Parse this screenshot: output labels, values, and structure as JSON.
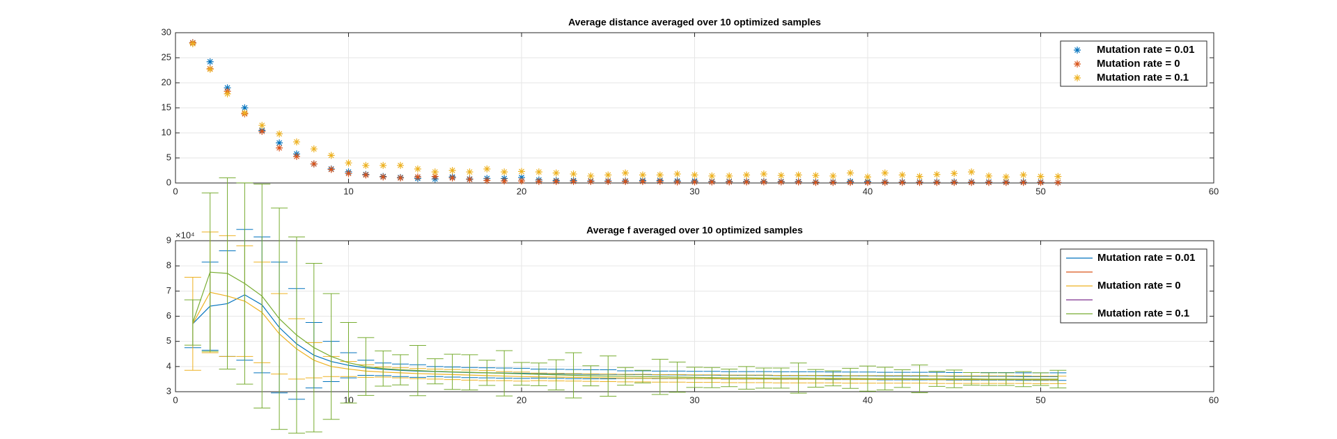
{
  "chart_data": [
    {
      "type": "scatter",
      "title": "Average distance averaged over 10 optimized samples",
      "x": [
        1,
        2,
        3,
        4,
        5,
        6,
        7,
        8,
        9,
        10,
        11,
        12,
        13,
        14,
        15,
        16,
        17,
        18,
        19,
        20,
        21,
        22,
        23,
        24,
        25,
        26,
        27,
        28,
        29,
        30,
        31,
        32,
        33,
        34,
        35,
        36,
        37,
        38,
        39,
        40,
        41,
        42,
        43,
        44,
        45,
        46,
        47,
        48,
        49,
        50,
        51
      ],
      "xlim": [
        0,
        60
      ],
      "xticks": [
        0,
        10,
        20,
        30,
        40,
        50,
        60
      ],
      "ylim": [
        0,
        30
      ],
      "yticks": [
        0,
        5,
        10,
        15,
        20,
        25,
        30
      ],
      "grid": true,
      "legend": "northeast",
      "series": [
        {
          "name": "Mutation rate = 0.01",
          "color": "#0072BD",
          "values": [
            28,
            24.2,
            19,
            15,
            10.5,
            8,
            5.8,
            3.8,
            2.8,
            2.2,
            1.7,
            1.3,
            1.1,
            0.9,
            0.8,
            1.2,
            0.8,
            0.9,
            0.9,
            1.1,
            0.6,
            0.5,
            0.5,
            0.4,
            0.4,
            0.4,
            0.5,
            0.5,
            0.4,
            0.4,
            0.3,
            0.3,
            0.3,
            0.3,
            0.3,
            0.3,
            0.2,
            0.2,
            0.3,
            0.3,
            0.2,
            0.2,
            0.2,
            0.2,
            0.2,
            0.2,
            0.2,
            0.2,
            0.2,
            0.2,
            0.1
          ]
        },
        {
          "name": "Mutation rate = 0",
          "color": "#D95319",
          "values": [
            28,
            22.8,
            18.3,
            13.8,
            10.3,
            7,
            5.3,
            3.8,
            2.7,
            1.9,
            1.6,
            1.2,
            1,
            1.2,
            1.3,
            1,
            0.7,
            0.5,
            0.4,
            0.4,
            0.3,
            0.3,
            0.3,
            0.3,
            0.3,
            0.3,
            0.3,
            0.3,
            0.2,
            0.2,
            0.2,
            0.2,
            0.2,
            0.2,
            0.2,
            0.2,
            0.1,
            0.1,
            0.1,
            0.1,
            0.1,
            0.1,
            0.1,
            0.1,
            0.1,
            0.1,
            0.1,
            0.1,
            0.1,
            0.1,
            0.1
          ]
        },
        {
          "name": "Mutation rate = 0.1",
          "color": "#EDB120",
          "values": [
            27.8,
            22.7,
            17.8,
            14,
            11.5,
            9.8,
            8.2,
            6.8,
            5.5,
            4,
            3.5,
            3.5,
            3.5,
            2.8,
            2.2,
            2.5,
            2.2,
            2.8,
            2.2,
            2.3,
            2.2,
            2,
            1.8,
            1.4,
            1.6,
            2,
            1.6,
            1.6,
            1.8,
            1.6,
            1.4,
            1.4,
            1.6,
            1.8,
            1.5,
            1.6,
            1.5,
            1.4,
            2,
            1.2,
            2,
            1.6,
            1.3,
            1.7,
            1.9,
            2.2,
            1.4,
            1.2,
            1.6,
            1.3,
            1.3
          ]
        }
      ]
    },
    {
      "type": "errorbar",
      "title": "Average f averaged over 10 optimized samples",
      "y_multiplier": "×10⁴",
      "x": [
        1,
        2,
        3,
        4,
        5,
        6,
        7,
        8,
        9,
        10,
        11,
        12,
        13,
        14,
        15,
        16,
        17,
        18,
        19,
        20,
        21,
        22,
        23,
        24,
        25,
        26,
        27,
        28,
        29,
        30,
        31,
        32,
        33,
        34,
        35,
        36,
        37,
        38,
        39,
        40,
        41,
        42,
        43,
        44,
        45,
        46,
        47,
        48,
        49,
        50,
        51
      ],
      "xlim": [
        0,
        60
      ],
      "xticks": [
        0,
        10,
        20,
        30,
        40,
        50,
        60
      ],
      "ylim": [
        30000,
        90000
      ],
      "yticks": [
        {
          "value": 30000,
          "label": "3"
        },
        {
          "value": 40000,
          "label": "4"
        },
        {
          "value": 50000,
          "label": "5"
        },
        {
          "value": 60000,
          "label": "6"
        },
        {
          "value": 70000,
          "label": "7"
        },
        {
          "value": 80000,
          "label": "8"
        },
        {
          "value": 90000,
          "label": "9"
        }
      ],
      "grid": true,
      "legend": "northeast",
      "series": [
        {
          "name": "Mutation rate = 0.01",
          "color": "#0072BD",
          "values": [
            57000,
            64000,
            65000,
            68500,
            64500,
            55500,
            49000,
            44500,
            42000,
            40500,
            39500,
            38900,
            38500,
            38200,
            38000,
            37800,
            37600,
            37500,
            37400,
            37300,
            37200,
            37100,
            37000,
            36900,
            36900,
            36800,
            36800,
            36700,
            36700,
            36600,
            36600,
            36500,
            36500,
            36500,
            36400,
            36400,
            36400,
            36300,
            36300,
            36300,
            36200,
            36200,
            36200,
            36200,
            36100,
            36100,
            36100,
            36100,
            36000,
            36000,
            36000
          ],
          "errors": [
            9500,
            17500,
            21000,
            26000,
            27000,
            26000,
            22000,
            13000,
            8000,
            5000,
            3000,
            2500,
            2500,
            2500,
            2000,
            2000,
            2000,
            2000,
            2000,
            2000,
            1800,
            1800,
            1800,
            1800,
            1800,
            1500,
            1500,
            1500,
            1500,
            1500,
            1500,
            1500,
            1500,
            1500,
            1500,
            1500,
            1500,
            1500,
            1500,
            1500,
            1500,
            1500,
            1500,
            1500,
            1500,
            1500,
            1500,
            1500,
            1500,
            1500,
            1500
          ]
        },
        {
          "name": "Mutation rate = 0",
          "color": "#EDB120",
          "values": [
            57000,
            69500,
            68000,
            66000,
            61500,
            53000,
            47000,
            42500,
            40000,
            39000,
            38200,
            37800,
            37500,
            37200,
            37000,
            36800,
            36600,
            36400,
            36200,
            36000,
            35900,
            35800,
            35700,
            35600,
            35500,
            35400,
            35400,
            35300,
            35300,
            35200,
            35200,
            35100,
            35100,
            35100,
            35000,
            35000,
            35000,
            35000,
            34900,
            34900,
            34900,
            34900,
            34900,
            34800,
            34800,
            34800,
            34800,
            34800,
            34800,
            34700,
            34700
          ],
          "errors": [
            18500,
            24000,
            24000,
            22000,
            20000,
            16000,
            12000,
            7000,
            4000,
            3000,
            2500,
            2000,
            2000,
            2000,
            2000,
            2000,
            2000,
            2000,
            1800,
            1800,
            1500,
            1500,
            1500,
            1500,
            1500,
            1500,
            1500,
            1500,
            1500,
            1500,
            1500,
            1500,
            1500,
            1500,
            1500,
            1500,
            1500,
            1500,
            1500,
            1500,
            1500,
            1500,
            1500,
            1500,
            1500,
            1500,
            1500,
            1500,
            1500,
            1500,
            1500
          ]
        },
        {
          "name": "Mutation rate = 0.1",
          "color": "#77AC30",
          "values": [
            57500,
            77500,
            77000,
            73000,
            68000,
            59000,
            52500,
            47500,
            44000,
            41500,
            40000,
            39200,
            38700,
            38400,
            38100,
            37900,
            37700,
            37500,
            37300,
            37100,
            36900,
            36700,
            36500,
            36300,
            36200,
            36100,
            36000,
            35900,
            35800,
            35700,
            35600,
            35500,
            35500,
            35400,
            35400,
            35400,
            35300,
            35300,
            35300,
            35200,
            35200,
            35200,
            35100,
            35100,
            35100,
            35100,
            35000,
            35000,
            35000,
            35000,
            35000
          ],
          "errors": [
            9000,
            31500,
            38000,
            40000,
            44500,
            44000,
            39000,
            33500,
            25000,
            16000,
            11500,
            7000,
            6000,
            10000,
            5000,
            7000,
            7000,
            5000,
            9000,
            4500,
            4500,
            6000,
            9000,
            4000,
            8000,
            3500,
            2500,
            7000,
            6000,
            4000,
            4000,
            3500,
            4500,
            4000,
            4000,
            6000,
            3500,
            3000,
            4000,
            5000,
            4500,
            3500,
            5500,
            3000,
            3500,
            2500,
            2500,
            2500,
            3000,
            2500,
            3500
          ]
        }
      ]
    }
  ]
}
